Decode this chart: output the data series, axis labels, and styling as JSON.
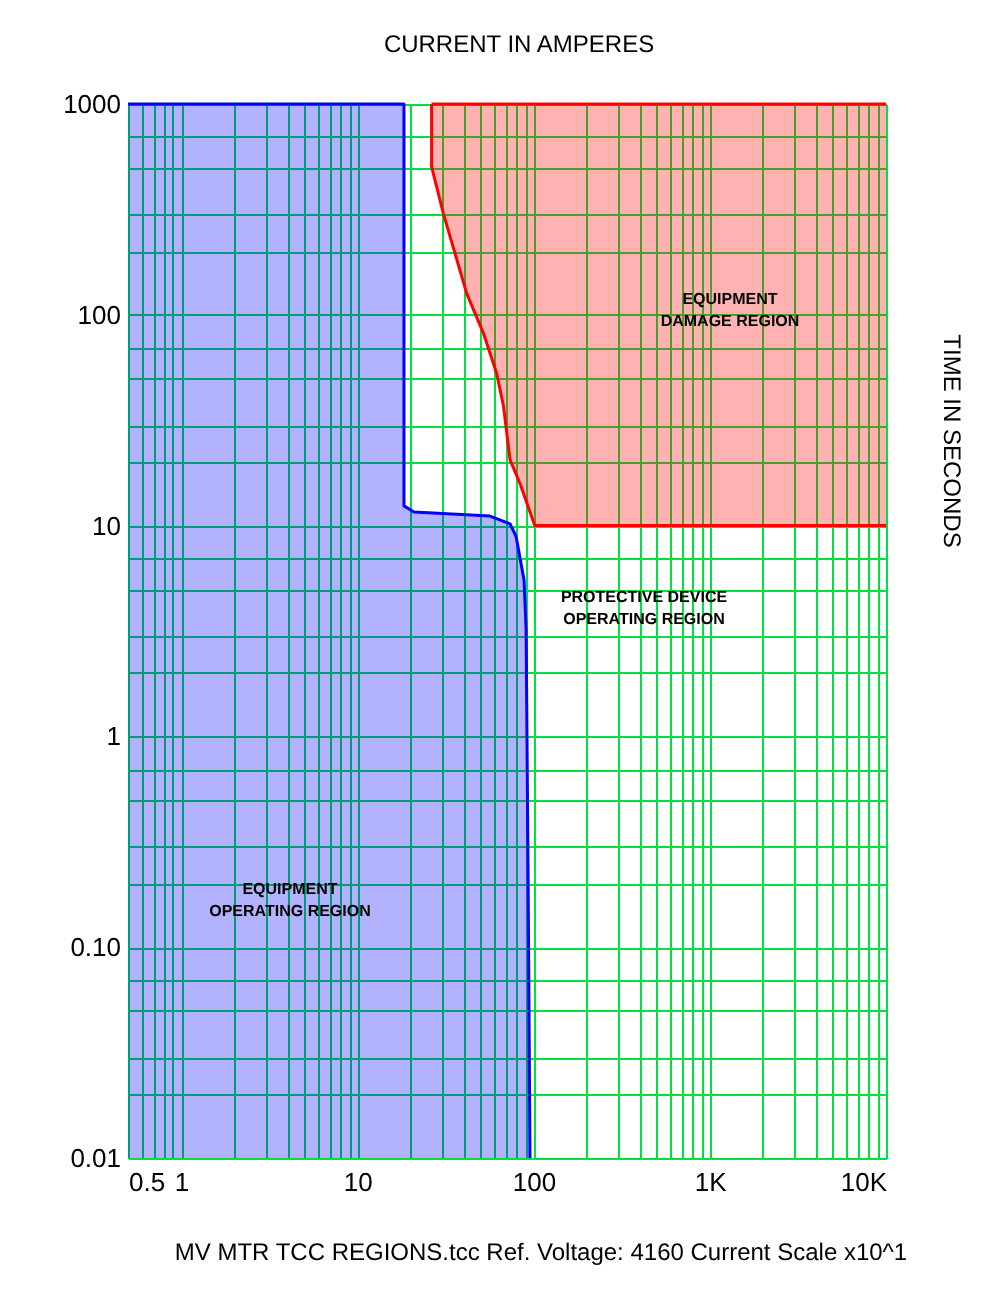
{
  "chart_data": {
    "type": "area",
    "xlabel": "CURRENT IN AMPERES",
    "ylabel": "TIME IN SECONDS",
    "log": "xy",
    "grid": true,
    "xlim": [
      0.5,
      10000
    ],
    "ylim": [
      0.01,
      1000
    ],
    "xticks": [
      0.5,
      {
        "value": 0.6,
        "label": null
      },
      {
        "value": 0.7,
        "label": null
      },
      {
        "value": 0.8,
        "label": null
      },
      {
        "value": 0.9,
        "label": null
      },
      1,
      {
        "value": 2,
        "label": null
      },
      {
        "value": 3,
        "label": null
      },
      {
        "value": 4,
        "label": null
      },
      {
        "value": 5,
        "label": null
      },
      {
        "value": 6,
        "label": null
      },
      {
        "value": 7,
        "label": null
      },
      {
        "value": 8,
        "label": null
      },
      {
        "value": 9,
        "label": null
      },
      10,
      {
        "value": 20,
        "label": null
      },
      {
        "value": 30,
        "label": null
      },
      {
        "value": 40,
        "label": null
      },
      {
        "value": 50,
        "label": null
      },
      {
        "value": 60,
        "label": null
      },
      {
        "value": 70,
        "label": null
      },
      {
        "value": 80,
        "label": null
      },
      {
        "value": 90,
        "label": null
      },
      100,
      {
        "value": 200,
        "label": null
      },
      {
        "value": 300,
        "label": null
      },
      {
        "value": 400,
        "label": null
      },
      {
        "value": 500,
        "label": null
      },
      {
        "value": 600,
        "label": null
      },
      {
        "value": 700,
        "label": null
      },
      {
        "value": 800,
        "label": null
      },
      {
        "value": 900,
        "label": null
      },
      {
        "value": 1000,
        "label": "1K"
      },
      {
        "value": 2000,
        "label": null
      },
      {
        "value": 3000,
        "label": null
      },
      {
        "value": 4000,
        "label": null
      },
      {
        "value": 5000,
        "label": null
      },
      {
        "value": 6000,
        "label": null
      },
      {
        "value": 7000,
        "label": null
      },
      {
        "value": 8000,
        "label": null
      },
      {
        "value": 9000,
        "label": null
      },
      {
        "value": 10000,
        "label": "10K"
      }
    ],
    "yticks": [
      0.01,
      {
        "value": 0.02,
        "label": null
      },
      {
        "value": 0.03,
        "label": null
      },
      {
        "value": 0.05,
        "label": null
      },
      {
        "value": 0.07,
        "label": null
      },
      {
        "value": 0.1,
        "label": "0.10"
      },
      {
        "value": 0.2,
        "label": null
      },
      {
        "value": 0.3,
        "label": null
      },
      {
        "value": 0.5,
        "label": null
      },
      {
        "value": 0.7,
        "label": null
      },
      1,
      {
        "value": 2,
        "label": null
      },
      {
        "value": 3,
        "label": null
      },
      {
        "value": 5,
        "label": null
      },
      {
        "value": 7,
        "label": null
      },
      10,
      {
        "value": 20,
        "label": null
      },
      {
        "value": 30,
        "label": null
      },
      {
        "value": 50,
        "label": null
      },
      {
        "value": 70,
        "label": null
      },
      100,
      {
        "value": 200,
        "label": null
      },
      {
        "value": 300,
        "label": null
      },
      {
        "value": 500,
        "label": null
      },
      {
        "value": 700,
        "label": null
      },
      1000
    ],
    "series": [
      {
        "color": "#0000ff",
        "x": [
          0.5,
          18.4,
          18.4,
          21,
          56.7,
          73.6,
          79.6,
          88.4,
          90.8,
          93,
          95.5
        ],
        "values": [
          1000,
          1000,
          12.4,
          11.6,
          11.1,
          10.2,
          8.9,
          5.5,
          3.2,
          0.26,
          0.01
        ]
      },
      {
        "type": "line",
        "color": "#ff0000",
        "x": [
          26.4,
          26.4,
          30.8,
          41.8,
          52,
          61.8,
          67.6,
          73.6,
          83.9,
          101.6,
          10000
        ],
        "values": [
          1000,
          505,
          302,
          126,
          81.7,
          52.7,
          36.7,
          20.5,
          15.8,
          10,
          10
        ],
        "lower": [
          1000,
          505,
          302,
          126,
          81.7,
          52.7,
          36.7,
          20.5,
          15.8,
          10,
          10
        ],
        "upper": [
          1000,
          1000,
          1000,
          1000,
          1000,
          1000,
          1000,
          1000,
          1000,
          1000,
          1000
        ]
      }
    ],
    "annotations": [
      "EQUIPMENT\nDAMAGE REGION",
      "PROTECTIVE DEVICE\nOPERATING REGION",
      "EQUIPMENT\nOPERATING REGION",
      "MV MTR TCC REGIONS.tcc   Ref. Voltage: 4160   Current Scale x10^1"
    ]
  }
}
